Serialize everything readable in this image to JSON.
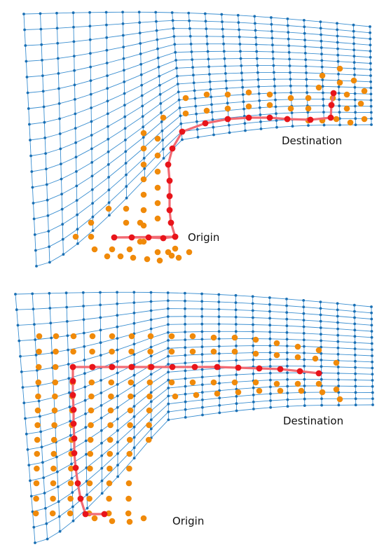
{
  "colors": {
    "mesh_line": "#3b8fd1",
    "mesh_node": "#1a6fb3",
    "explored_node": "#f08a0a",
    "path_node": "#e8141a",
    "path_line": "#f26a73"
  },
  "panels": [
    {
      "origin_label": "Origin",
      "destination_label": "Destination"
    },
    {
      "origin_label": "Origin",
      "destination_label": "Destination"
    }
  ]
}
